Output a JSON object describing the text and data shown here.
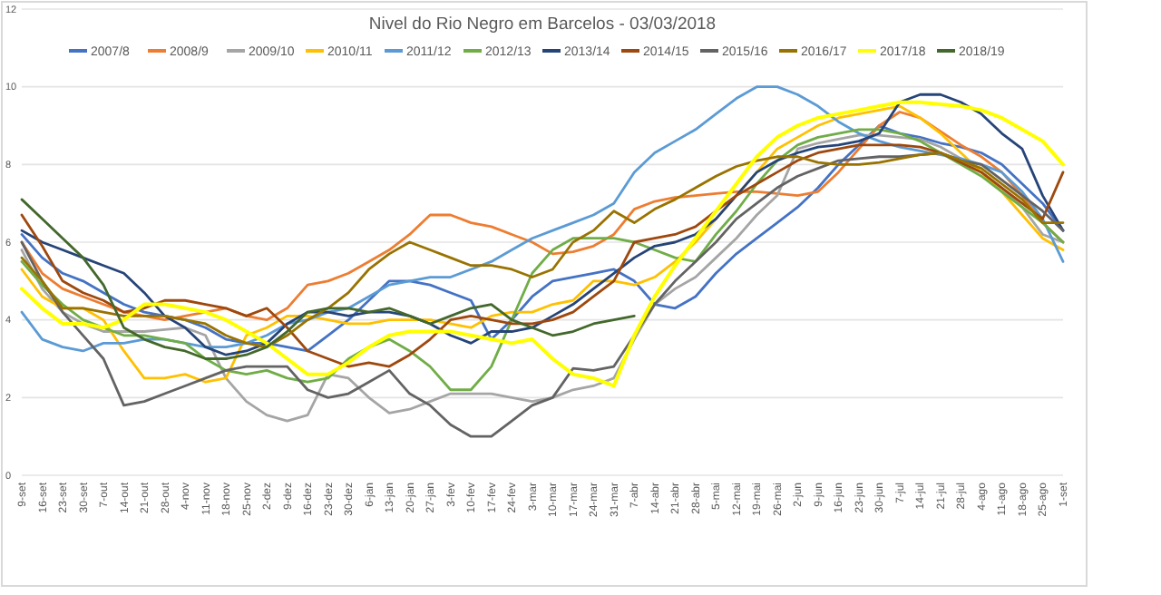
{
  "chart_data": {
    "type": "line",
    "title": "Nivel do Rio Negro em Barcelos - 03/03/2018",
    "categories": [
      "9-set",
      "16-set",
      "23-set",
      "30-set",
      "7-out",
      "14-out",
      "21-out",
      "28-out",
      "4-nov",
      "11-nov",
      "18-nov",
      "25-nov",
      "2-dez",
      "9-dez",
      "16-dez",
      "23-dez",
      "30-dez",
      "6-jan",
      "13-jan",
      "20-jan",
      "27-jan",
      "3-fev",
      "10-fev",
      "17-fev",
      "24-fev",
      "3-mar",
      "10-mar",
      "17-mar",
      "24-mar",
      "31-mar",
      "7-abr",
      "14-abr",
      "21-abr",
      "28-abr",
      "5-mai",
      "12-mai",
      "19-mai",
      "26-mai",
      "2-jun",
      "9-jun",
      "16-jun",
      "23-jun",
      "30-jun",
      "7-jul",
      "14-jul",
      "21-jul",
      "28-jul",
      "4-ago",
      "11-ago",
      "18-ago",
      "25-ago",
      "1-set"
    ],
    "ylim": [
      0,
      12
    ],
    "yticks": [
      0,
      2,
      4,
      6,
      8,
      10,
      12
    ],
    "grid": "y",
    "legend": "top",
    "marker": "none",
    "line_style": "solid",
    "series": [
      {
        "name": "2007/8",
        "color": "#4472c4",
        "values": [
          6.2,
          5.6,
          5.2,
          5.0,
          4.7,
          4.4,
          4.2,
          4.1,
          4.0,
          3.8,
          3.5,
          3.4,
          3.4,
          3.3,
          3.2,
          3.6,
          4.0,
          4.5,
          5.0,
          5.0,
          4.9,
          4.7,
          4.5,
          3.5,
          4.0,
          4.6,
          5.0,
          5.1,
          5.2,
          5.3,
          5.0,
          4.4,
          4.3,
          4.6,
          5.2,
          5.7,
          6.1,
          6.5,
          6.9,
          7.4,
          8.0,
          8.5,
          9.0,
          8.8,
          8.7,
          8.55,
          8.45,
          8.3,
          8.0,
          7.5,
          7.0,
          6.3
        ]
      },
      {
        "name": "2008/9",
        "color": "#ed7d31",
        "values": [
          6.0,
          5.2,
          4.8,
          4.6,
          4.4,
          4.2,
          4.1,
          4.0,
          4.1,
          4.2,
          4.3,
          4.1,
          4.0,
          4.3,
          4.9,
          5.0,
          5.2,
          5.5,
          5.8,
          6.2,
          6.7,
          6.7,
          6.5,
          6.4,
          6.2,
          6.0,
          5.7,
          5.75,
          5.9,
          6.2,
          6.85,
          7.05,
          7.15,
          7.2,
          7.25,
          7.3,
          7.3,
          7.25,
          7.2,
          7.3,
          7.8,
          8.4,
          9.0,
          9.35,
          9.2,
          8.85,
          8.5,
          8.2,
          7.8,
          7.2,
          6.5,
          6.0
        ]
      },
      {
        "name": "2009/10",
        "color": "#a5a5a5",
        "values": [
          5.8,
          4.8,
          4.2,
          3.9,
          3.7,
          3.7,
          3.7,
          3.75,
          3.8,
          3.6,
          2.5,
          1.9,
          1.55,
          1.4,
          1.55,
          2.6,
          2.5,
          2.0,
          1.6,
          1.7,
          1.9,
          2.1,
          2.1,
          2.1,
          2.0,
          1.9,
          2.0,
          2.2,
          2.3,
          2.5,
          3.5,
          4.4,
          4.8,
          5.1,
          5.6,
          6.1,
          6.7,
          7.2,
          8.4,
          8.55,
          8.65,
          8.75,
          8.75,
          8.7,
          8.65,
          8.45,
          8.15,
          7.8,
          7.4,
          6.9,
          6.2,
          6.0
        ]
      },
      {
        "name": "2010/11",
        "color": "#ffc000",
        "values": [
          5.3,
          4.6,
          4.3,
          4.3,
          4.0,
          3.2,
          2.5,
          2.5,
          2.6,
          2.4,
          2.5,
          3.6,
          3.8,
          4.1,
          4.1,
          4.0,
          3.9,
          3.9,
          4.0,
          4.0,
          4.0,
          3.9,
          3.8,
          4.1,
          4.2,
          4.2,
          4.4,
          4.5,
          5.0,
          5.0,
          4.9,
          5.1,
          5.5,
          6.0,
          6.6,
          7.2,
          7.8,
          8.4,
          8.7,
          9.0,
          9.2,
          9.3,
          9.4,
          9.5,
          9.2,
          8.8,
          8.3,
          7.8,
          7.3,
          6.7,
          6.1,
          5.8
        ]
      },
      {
        "name": "2011/12",
        "color": "#5b9bd5",
        "values": [
          4.2,
          3.5,
          3.3,
          3.2,
          3.4,
          3.4,
          3.5,
          3.5,
          3.4,
          3.3,
          3.3,
          3.4,
          3.6,
          3.9,
          4.0,
          4.2,
          4.3,
          4.6,
          4.9,
          5.0,
          5.1,
          5.1,
          5.3,
          5.5,
          5.8,
          6.1,
          6.3,
          6.5,
          6.7,
          7.0,
          7.8,
          8.3,
          8.6,
          8.9,
          9.3,
          9.7,
          10.0,
          10.0,
          9.8,
          9.5,
          9.1,
          8.8,
          8.6,
          8.45,
          8.35,
          8.25,
          8.15,
          8.0,
          7.8,
          7.3,
          6.6,
          5.5
        ]
      },
      {
        "name": "2012/13",
        "color": "#70ad47",
        "values": [
          5.5,
          4.9,
          4.4,
          4.0,
          3.8,
          3.6,
          3.6,
          3.5,
          3.4,
          3.0,
          2.7,
          2.6,
          2.7,
          2.5,
          2.4,
          2.5,
          3.0,
          3.3,
          3.5,
          3.2,
          2.8,
          2.2,
          2.2,
          2.8,
          4.0,
          5.2,
          5.8,
          6.1,
          6.1,
          6.1,
          6.0,
          5.8,
          5.6,
          5.5,
          6.2,
          6.8,
          7.5,
          8.1,
          8.5,
          8.7,
          8.8,
          8.9,
          8.9,
          8.8,
          8.6,
          8.3,
          8.0,
          7.7,
          7.3,
          6.9,
          6.5,
          6.0
        ]
      },
      {
        "name": "2013/14",
        "color": "#264478",
        "values": [
          6.3,
          6.0,
          5.8,
          5.6,
          5.4,
          5.2,
          4.7,
          4.1,
          3.8,
          3.3,
          3.1,
          3.2,
          3.4,
          3.9,
          4.2,
          4.2,
          4.1,
          4.2,
          4.2,
          4.1,
          3.9,
          3.6,
          3.4,
          3.7,
          3.7,
          3.8,
          4.1,
          4.4,
          4.8,
          5.2,
          5.6,
          5.9,
          6.0,
          6.2,
          6.6,
          7.2,
          7.8,
          8.1,
          8.3,
          8.45,
          8.5,
          8.6,
          8.8,
          9.6,
          9.8,
          9.8,
          9.6,
          9.3,
          8.8,
          8.4,
          7.2,
          6.3
        ]
      },
      {
        "name": "2014/15",
        "color": "#9e480e",
        "values": [
          6.7,
          5.9,
          5.0,
          4.7,
          4.5,
          4.2,
          4.3,
          4.5,
          4.5,
          4.4,
          4.3,
          4.1,
          4.3,
          3.8,
          3.2,
          3.0,
          2.8,
          2.9,
          2.8,
          3.1,
          3.5,
          4.0,
          4.1,
          4.0,
          3.9,
          3.9,
          4.0,
          4.2,
          4.6,
          5.0,
          6.0,
          6.1,
          6.2,
          6.4,
          6.8,
          7.2,
          7.5,
          7.8,
          8.1,
          8.3,
          8.4,
          8.5,
          8.5,
          8.5,
          8.45,
          8.3,
          8.05,
          7.8,
          7.4,
          7.0,
          6.6,
          7.8
        ]
      },
      {
        "name": "2015/16",
        "color": "#636363",
        "values": [
          6.0,
          5.0,
          4.2,
          3.6,
          3.0,
          1.8,
          1.9,
          2.1,
          2.3,
          2.5,
          2.7,
          2.8,
          2.8,
          2.8,
          2.2,
          2.0,
          2.1,
          2.4,
          2.7,
          2.1,
          1.8,
          1.3,
          1.0,
          1.0,
          1.4,
          1.8,
          2.0,
          2.75,
          2.7,
          2.8,
          3.6,
          4.4,
          5.0,
          5.5,
          6.0,
          6.6,
          7.0,
          7.4,
          7.7,
          7.9,
          8.1,
          8.15,
          8.2,
          8.2,
          8.25,
          8.3,
          8.1,
          8.0,
          7.6,
          7.2,
          6.8,
          6.3
        ]
      },
      {
        "name": "2016/17",
        "color": "#997300",
        "values": [
          5.6,
          5.0,
          4.3,
          4.3,
          4.2,
          4.1,
          4.1,
          4.1,
          4.0,
          3.9,
          3.6,
          3.4,
          3.3,
          3.6,
          4.0,
          4.3,
          4.7,
          5.3,
          5.7,
          6.0,
          5.8,
          5.6,
          5.4,
          5.4,
          5.3,
          5.1,
          5.3,
          6.0,
          6.3,
          6.8,
          6.5,
          6.85,
          7.1,
          7.4,
          7.7,
          7.95,
          8.1,
          8.2,
          8.2,
          8.05,
          8.0,
          8.0,
          8.05,
          8.15,
          8.25,
          8.3,
          8.1,
          7.9,
          7.5,
          7.1,
          6.5,
          6.5
        ]
      },
      {
        "name": "2017/18",
        "color": "#ffff00",
        "values": [
          4.8,
          4.3,
          3.9,
          3.9,
          3.8,
          4.0,
          4.4,
          4.4,
          4.3,
          4.2,
          4.0,
          3.7,
          3.4,
          3.0,
          2.6,
          2.6,
          2.9,
          3.3,
          3.6,
          3.7,
          3.7,
          3.7,
          3.6,
          3.5,
          3.4,
          3.5,
          3.0,
          2.6,
          2.5,
          2.3,
          3.6,
          4.6,
          5.4,
          6.1,
          6.8,
          7.5,
          8.2,
          8.7,
          9.0,
          9.2,
          9.3,
          9.4,
          9.5,
          9.6,
          9.6,
          9.55,
          9.5,
          9.4,
          9.2,
          8.9,
          8.6,
          8.0
        ]
      },
      {
        "name": "2018/19",
        "color": "#43682b",
        "values": [
          7.1,
          6.6,
          6.1,
          5.6,
          4.9,
          3.8,
          3.5,
          3.3,
          3.2,
          3.0,
          3.0,
          3.1,
          3.3,
          3.7,
          4.2,
          4.3,
          4.3,
          4.2,
          4.3,
          4.1,
          3.9,
          4.1,
          4.3,
          4.4,
          4.0,
          3.8,
          3.6,
          3.7,
          3.9,
          4.0,
          4.1,
          null,
          null,
          null,
          null,
          null,
          null,
          null,
          null,
          null,
          null,
          null,
          null,
          null,
          null,
          null,
          null,
          null,
          null,
          null,
          null,
          null
        ]
      }
    ]
  }
}
